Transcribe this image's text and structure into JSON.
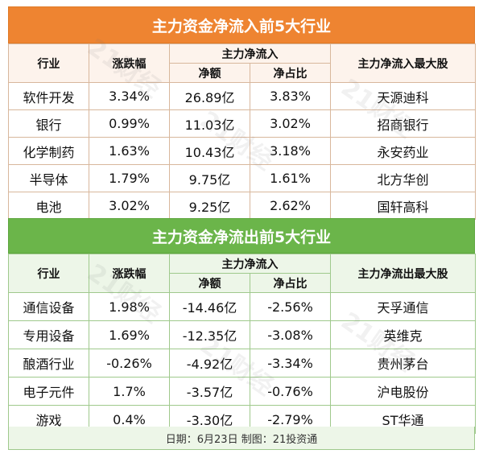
{
  "inflow": {
    "title": "主力资金净流入前5大行业",
    "headers": {
      "industry": "行业",
      "change": "涨跌幅",
      "group": "主力净流入",
      "amount": "净额",
      "ratio": "净占比",
      "top_stock": "主力净流入最大股"
    },
    "rows": [
      {
        "industry": "软件开发",
        "change": "3.34%",
        "amount": "26.89亿",
        "ratio": "3.83%",
        "stock": "天源迪科"
      },
      {
        "industry": "银行",
        "change": "0.99%",
        "amount": "11.03亿",
        "ratio": "3.02%",
        "stock": "招商银行"
      },
      {
        "industry": "化学制药",
        "change": "1.63%",
        "amount": "10.43亿",
        "ratio": "3.18%",
        "stock": "永安药业"
      },
      {
        "industry": "半导体",
        "change": "1.79%",
        "amount": "9.75亿",
        "ratio": "1.61%",
        "stock": "北方华创"
      },
      {
        "industry": "电池",
        "change": "3.02%",
        "amount": "9.25亿",
        "ratio": "2.62%",
        "stock": "国轩高科"
      }
    ]
  },
  "outflow": {
    "title": "主力资金净流出前5大行业",
    "headers": {
      "industry": "行业",
      "change": "涨跌幅",
      "group": "主力净流入",
      "amount": "净额",
      "ratio": "净占比",
      "top_stock": "主力净流出最大股"
    },
    "rows": [
      {
        "industry": "通信设备",
        "change": "1.98%",
        "amount": "-14.46亿",
        "ratio": "-2.56%",
        "stock": "天孚通信"
      },
      {
        "industry": "专用设备",
        "change": "1.69%",
        "amount": "-12.35亿",
        "ratio": "-3.08%",
        "stock": "英维克"
      },
      {
        "industry": "酿酒行业",
        "change": "-0.26%",
        "amount": "-4.92亿",
        "ratio": "-3.34%",
        "stock": "贵州茅台"
      },
      {
        "industry": "电子元件",
        "change": "1.7%",
        "amount": "-3.57亿",
        "ratio": "-0.76%",
        "stock": "沪电股份"
      },
      {
        "industry": "游戏",
        "change": "0.4%",
        "amount": "-3.30亿",
        "ratio": "-2.79%",
        "stock": "ST华通"
      }
    ]
  },
  "footer": "日期：6月23日 制图：21投资通",
  "watermark": "21财经",
  "colors": {
    "inflow_header": "#ee8431",
    "outflow_header": "#6bb54a"
  }
}
